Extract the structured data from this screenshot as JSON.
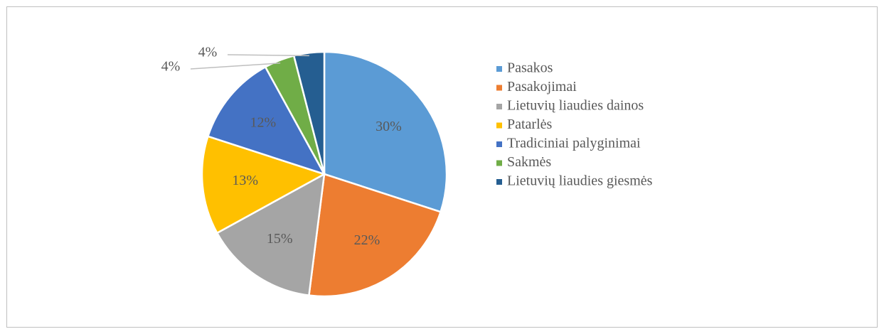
{
  "chart_data": {
    "type": "pie",
    "categories": [
      "Pasakos",
      "Pasakojimai",
      "Lietuvių liaudies dainos",
      "Patarlės",
      "Tradiciniai palyginimai",
      "Sakmės",
      "Lietuvių liaudies giesmės"
    ],
    "values": [
      30,
      22,
      15,
      13,
      12,
      4,
      4
    ],
    "value_labels": [
      "30%",
      "22%",
      "15%",
      "13%",
      "12%",
      "4%",
      "4%"
    ],
    "colors": [
      "#5b9bd5",
      "#ed7d31",
      "#a5a5a5",
      "#ffc000",
      "#4472c4",
      "#70ad47",
      "#255e91"
    ],
    "legend": "right"
  }
}
